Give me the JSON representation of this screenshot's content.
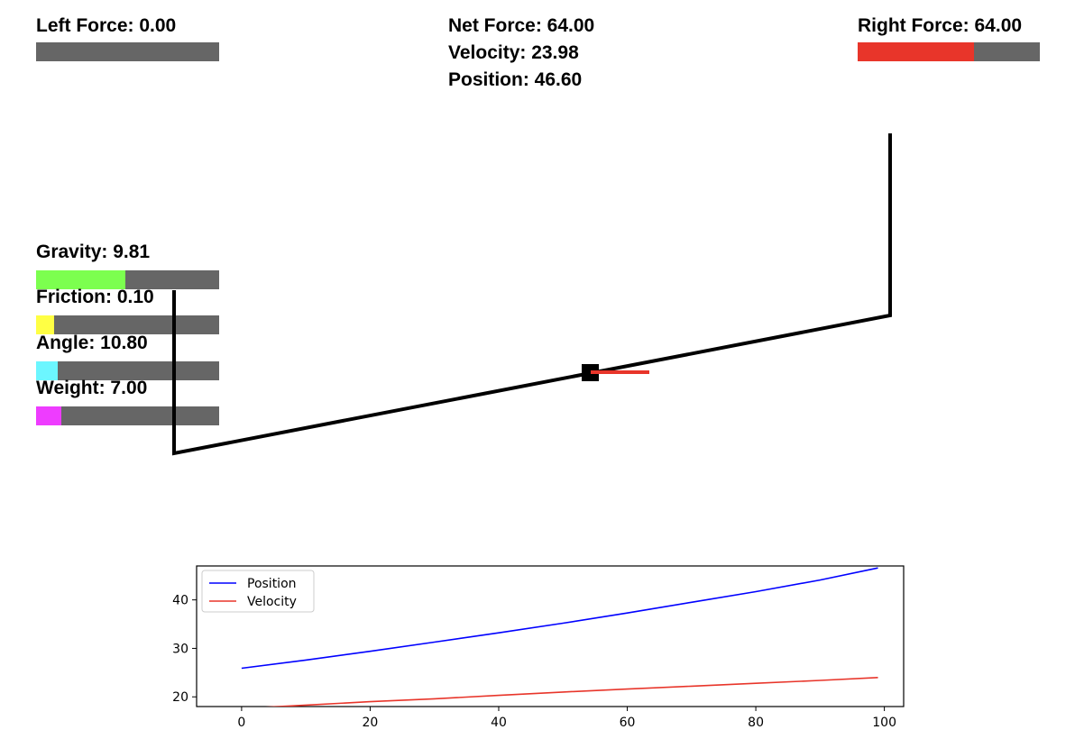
{
  "hud": {
    "left_force": {
      "label": "Left Force: 0.00",
      "value": 0.0,
      "fraction": 0.0,
      "color": "#e8352a"
    },
    "right_force": {
      "label": "Right Force: 64.00",
      "value": 64.0,
      "fraction": 0.64,
      "color": "#e8352a"
    },
    "net_force": "Net Force: 64.00",
    "velocity": "Velocity: 23.98",
    "position": "Position: 46.60"
  },
  "params": [
    {
      "key": "gravity",
      "label": "Gravity: 9.81",
      "fraction": 0.49,
      "color": "#7cff4f"
    },
    {
      "key": "friction",
      "label": "Friction: 0.10",
      "fraction": 0.1,
      "color": "#ffff44"
    },
    {
      "key": "angle",
      "label": "Angle: 10.80",
      "fraction": 0.12,
      "color": "#6cf6ff"
    },
    {
      "key": "weight",
      "label": "Weight: 7.00",
      "fraction": 0.14,
      "color": "#ee3cff"
    }
  ],
  "colors": {
    "track": "#000000",
    "cart": "#000000",
    "force_arrow": "#e8352a",
    "bar_bg": "#666666"
  },
  "chart_data": {
    "type": "line",
    "legend_position": "upper-left",
    "xlim": [
      -7,
      103
    ],
    "ylim": [
      18,
      47
    ],
    "xticks": [
      0,
      20,
      40,
      60,
      80,
      100
    ],
    "xtick_labels": [
      "0",
      "20",
      "40",
      "60",
      "80",
      "100"
    ],
    "yticks": [
      20,
      30,
      40
    ],
    "ytick_labels": [
      "20",
      "30",
      "40"
    ],
    "series": [
      {
        "name": "Position",
        "color": "#0000ff",
        "x": [
          0,
          10,
          20,
          30,
          40,
          50,
          60,
          70,
          80,
          90,
          99
        ],
        "y": [
          25.9,
          27.6,
          29.4,
          31.3,
          33.2,
          35.2,
          37.3,
          39.5,
          41.7,
          44.1,
          46.6
        ]
      },
      {
        "name": "Velocity",
        "color": "#e8352a",
        "x": [
          0,
          10,
          20,
          30,
          40,
          50,
          60,
          70,
          80,
          90,
          99
        ],
        "y": [
          17.6,
          18.3,
          19.0,
          19.6,
          20.3,
          21.0,
          21.6,
          22.2,
          22.8,
          23.4,
          23.98
        ]
      }
    ]
  }
}
